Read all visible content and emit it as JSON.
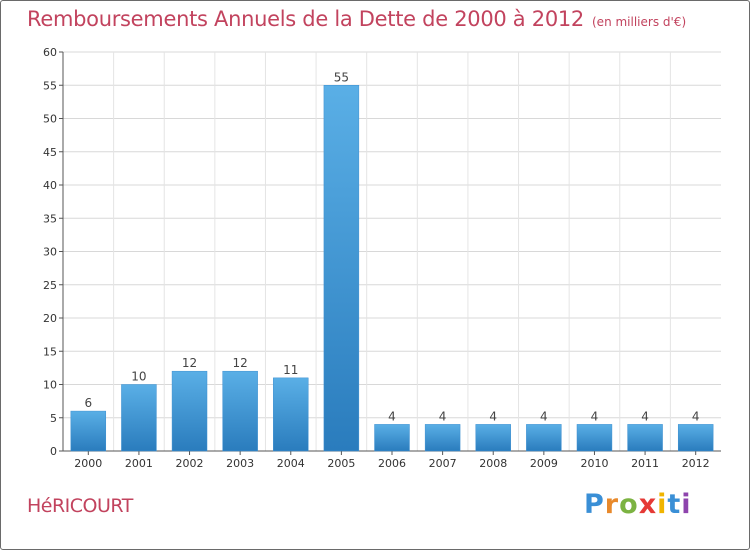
{
  "header": {
    "title": "Remboursements Annuels de la Dette de 2000 à 2012",
    "subtitle": "(en milliers d'€)"
  },
  "footer": {
    "town": "HéRICOURT",
    "logo": "Proxiti"
  },
  "colors": {
    "title": "#c2435e",
    "bar_light": "#5aafe6",
    "bar_dark": "#2a7cbd",
    "grid": "#d8d8d8"
  },
  "chart_data": {
    "type": "bar",
    "title": "Remboursements Annuels de la Dette de 2000 à 2012",
    "subtitle": "(en milliers d'€)",
    "xlabel": "",
    "ylabel": "",
    "categories": [
      "2000",
      "2001",
      "2002",
      "2003",
      "2004",
      "2005",
      "2006",
      "2007",
      "2008",
      "2009",
      "2010",
      "2011",
      "2012"
    ],
    "values": [
      6,
      10,
      12,
      12,
      11,
      55,
      4,
      4,
      4,
      4,
      4,
      4,
      4
    ],
    "ylim": [
      0,
      60
    ],
    "yticks": [
      0,
      5,
      10,
      15,
      20,
      25,
      30,
      35,
      40,
      45,
      50,
      55,
      60
    ],
    "grid": true,
    "data_labels": true
  }
}
